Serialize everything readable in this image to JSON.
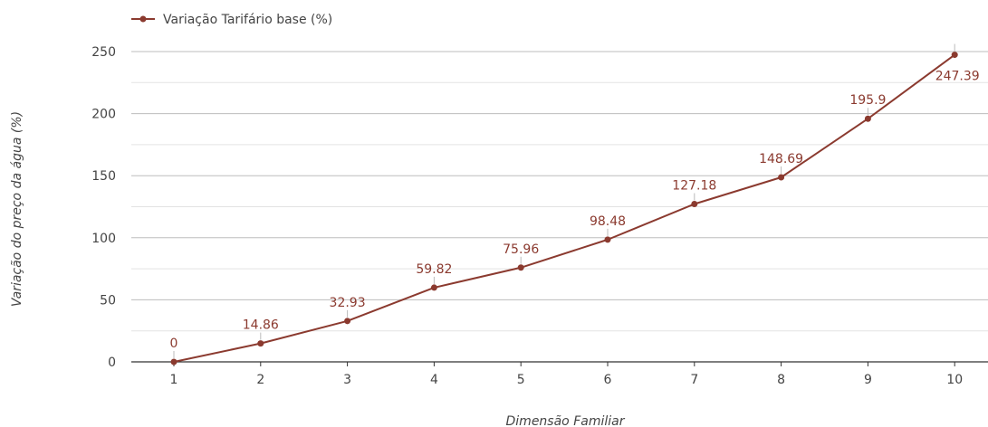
{
  "chart_data": {
    "type": "line",
    "x": [
      1,
      2,
      3,
      4,
      5,
      6,
      7,
      8,
      9,
      10
    ],
    "series": [
      {
        "name": "Variação Tarifário base (%)",
        "values": [
          0,
          14.86,
          32.93,
          59.82,
          75.96,
          98.48,
          127.18,
          148.69,
          195.9,
          247.39
        ],
        "labels": [
          "0",
          "14.86",
          "32.93",
          "59.82",
          "75.96",
          "98.48",
          "127.18",
          "148.69",
          "195.9",
          "247.39"
        ],
        "color": "#8b3a2f"
      }
    ],
    "xlabel": "Dimensão Familiar",
    "ylabel": "Variação do preço da água (%)",
    "ylim": [
      0,
      250
    ],
    "yticks": [
      0,
      50,
      100,
      150,
      200,
      250
    ],
    "ytick_labels": [
      "0",
      "50",
      "100",
      "150",
      "200",
      "250"
    ],
    "xtick_labels": [
      "1",
      "2",
      "3",
      "4",
      "5",
      "6",
      "7",
      "8",
      "9",
      "10"
    ],
    "grid": true,
    "legend": "top-left"
  }
}
